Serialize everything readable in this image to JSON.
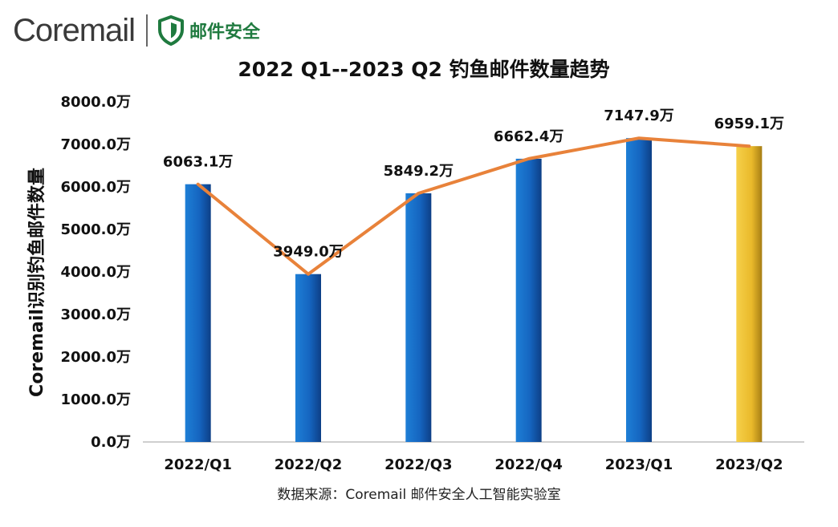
{
  "header": {
    "brand_name": "Coremail",
    "brand_tag": "邮件安全",
    "shield_icon": "shield-icon",
    "brand_color": "#1f7a3f"
  },
  "chart_data": {
    "type": "bar",
    "title": "2022 Q1--2023 Q2 钓鱼邮件数量趋势",
    "xlabel": "",
    "ylabel": "Coremail识别钓鱼邮件数量",
    "categories": [
      "2022/Q1",
      "2022/Q2",
      "2022/Q3",
      "2022/Q4",
      "2023/Q1",
      "2023/Q2"
    ],
    "values": [
      6063.1,
      3949.0,
      5849.2,
      6662.4,
      7147.9,
      6959.1
    ],
    "data_labels": [
      "6063.1万",
      "3949.0万",
      "5849.2万",
      "6662.4万",
      "7147.9万",
      "6959.1万"
    ],
    "yticks": [
      "0.0万",
      "1000.0万",
      "2000.0万",
      "3000.0万",
      "4000.0万",
      "5000.0万",
      "6000.0万",
      "7000.0万",
      "8000.0万"
    ],
    "ylim": [
      0,
      8000
    ],
    "line_overlay": true,
    "grid": false,
    "legend": "none",
    "colors": {
      "bar": "#1565c0",
      "highlight_bar": "#f0c030",
      "line": "#e8823a"
    }
  },
  "footer": {
    "source": "数据来源：Coremail 邮件安全人工智能实验室"
  }
}
